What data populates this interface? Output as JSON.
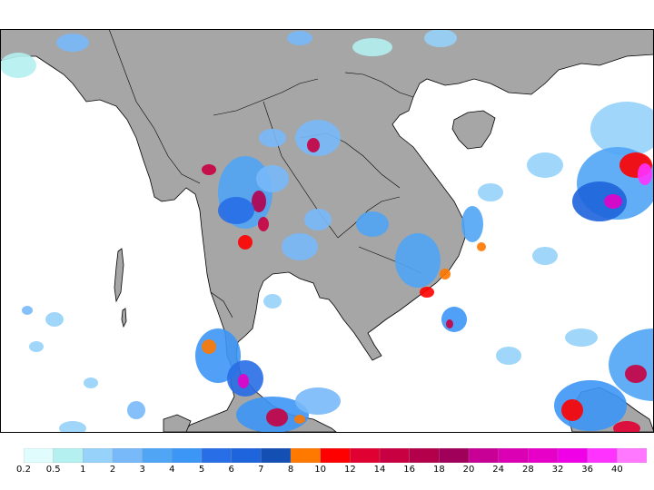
{
  "map": {
    "land_color": "#a6a6a6",
    "ocean_color": "#ffffff",
    "coast_color": "#000000"
  },
  "legend": {
    "colors": [
      "#e0fcfc",
      "#b4f0f0",
      "#96d2fa",
      "#78b9fa",
      "#50a5f5",
      "#3c96f5",
      "#286ee6",
      "#1e64dc",
      "#1450b4",
      "#ff7800",
      "#ff0000",
      "#e10032",
      "#c80041",
      "#b4004b",
      "#a0005a",
      "#c80096",
      "#dc00b4",
      "#e600c8",
      "#f000e6",
      "#ff32ff",
      "#ff78ff"
    ],
    "labels": [
      "0.2",
      "0.5",
      "1",
      "2",
      "3",
      "4",
      "5",
      "6",
      "7",
      "8",
      "10",
      "12",
      "14",
      "16",
      "18",
      "20",
      "24",
      "28",
      "32",
      "36",
      "40"
    ]
  }
}
